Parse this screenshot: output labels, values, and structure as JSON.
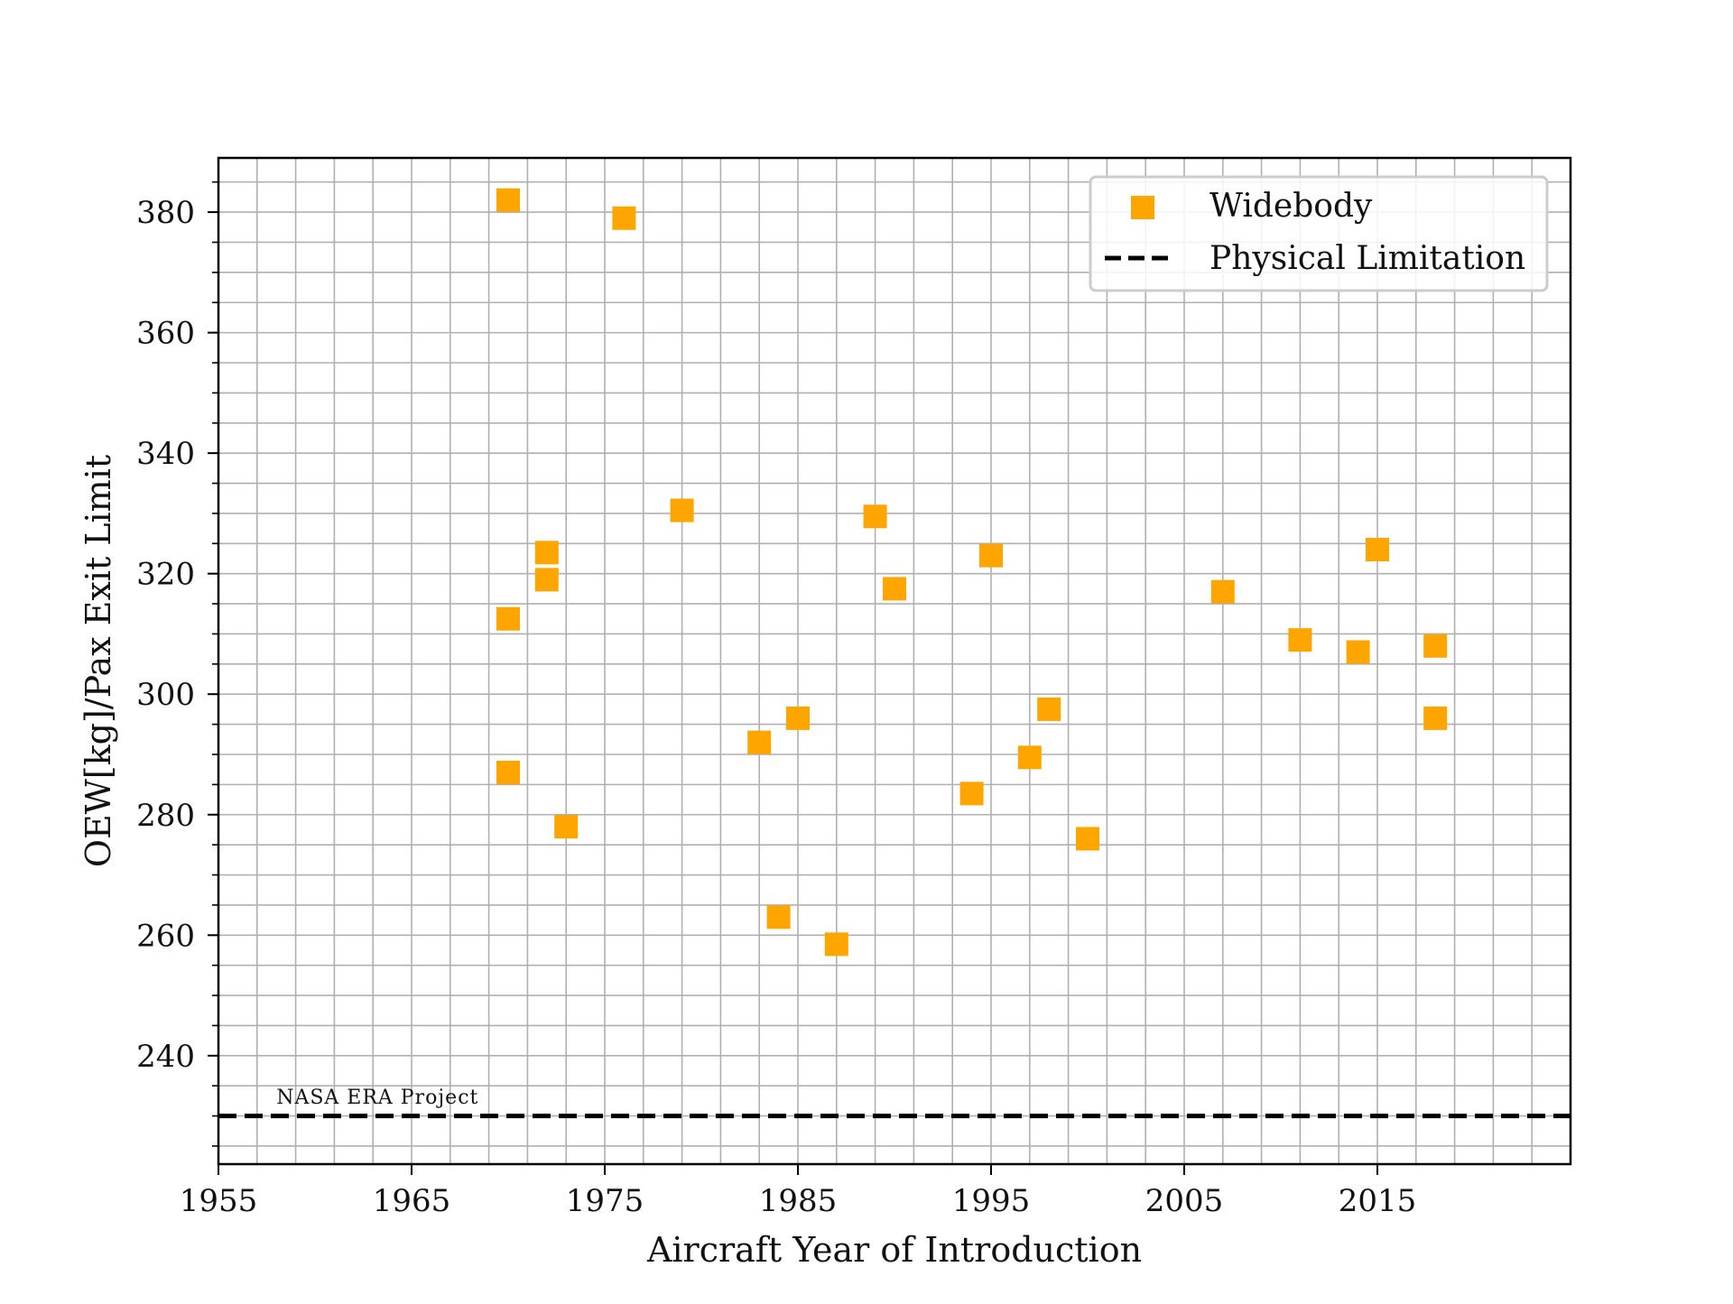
{
  "chart_data": {
    "type": "scatter",
    "title": "",
    "xlabel": "Aircraft Year of Introduction",
    "ylabel": "OEW[kg]/Pax Exit Limit",
    "xlim": [
      1955,
      2025
    ],
    "ylim": [
      222,
      389
    ],
    "x_ticks": [
      1955,
      1965,
      1975,
      1985,
      1995,
      2005,
      2015
    ],
    "y_ticks": [
      240,
      260,
      280,
      300,
      320,
      340,
      360,
      380
    ],
    "x_minor_step": 2,
    "y_minor_step": 5,
    "grid": true,
    "legend_position": "top-right",
    "series": [
      {
        "name": "Widebody",
        "marker": "square",
        "color": "#ffa500",
        "points": [
          {
            "x": 1970,
            "y": 382
          },
          {
            "x": 1970,
            "y": 312.5
          },
          {
            "x": 1970,
            "y": 287
          },
          {
            "x": 1972,
            "y": 323.5
          },
          {
            "x": 1972,
            "y": 319
          },
          {
            "x": 1973,
            "y": 278
          },
          {
            "x": 1976,
            "y": 379
          },
          {
            "x": 1979,
            "y": 330.5
          },
          {
            "x": 1983,
            "y": 292
          },
          {
            "x": 1984,
            "y": 263
          },
          {
            "x": 1985,
            "y": 296
          },
          {
            "x": 1987,
            "y": 258.5
          },
          {
            "x": 1989,
            "y": 329.5
          },
          {
            "x": 1990,
            "y": 317.5
          },
          {
            "x": 1994,
            "y": 283.5
          },
          {
            "x": 1995,
            "y": 323
          },
          {
            "x": 1997,
            "y": 289.5
          },
          {
            "x": 1998,
            "y": 297.5
          },
          {
            "x": 2000,
            "y": 276
          },
          {
            "x": 2007,
            "y": 317
          },
          {
            "x": 2011,
            "y": 309
          },
          {
            "x": 2014,
            "y": 307
          },
          {
            "x": 2015,
            "y": 324
          },
          {
            "x": 2018,
            "y": 308
          },
          {
            "x": 2018,
            "y": 296
          }
        ]
      }
    ],
    "reference_lines": [
      {
        "name": "Physical Limitation",
        "y": 230,
        "style": "dashed",
        "color": "#000000"
      }
    ],
    "annotations": [
      {
        "text": "NASA ERA Project",
        "x": 1958,
        "y": 232
      }
    ]
  }
}
